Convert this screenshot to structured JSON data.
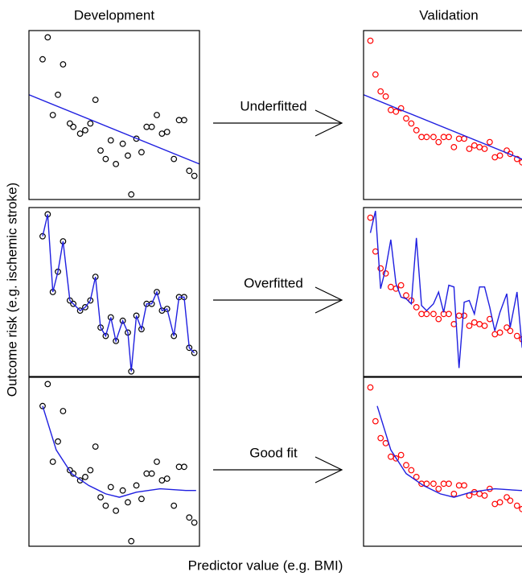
{
  "figure": {
    "xlabel": "Predictor value (e.g. BMI)",
    "ylabel": "Outcome risk (e.g. ischemic stroke)",
    "arrows": [
      "Underfitted",
      "Overfitted",
      "Good fit"
    ]
  },
  "chart_data": [
    {
      "type": "scatter",
      "title": "Development",
      "xlim": [
        0,
        100
      ],
      "ylim": [
        0,
        100
      ],
      "series": [
        {
          "color": "#000000",
          "x": [
            8,
            11,
            14,
            17,
            20,
            24,
            26,
            30,
            33,
            36,
            39,
            42,
            45,
            48,
            51,
            55,
            58,
            60,
            63,
            66,
            69,
            72,
            75,
            78,
            81,
            85,
            88,
            91,
            94,
            97
          ],
          "values": [
            83,
            96,
            50,
            62,
            80,
            45,
            43,
            39,
            41,
            45,
            59,
            29,
            24,
            35,
            21,
            33,
            26,
            3,
            36,
            28,
            43,
            43,
            50,
            39,
            40,
            24,
            47,
            47,
            17,
            14
          ]
        },
        {
          "color": "#1f1fe0",
          "x": [
            0,
            100
          ],
          "values": [
            62,
            21
          ]
        }
      ]
    },
    {
      "type": "scatter",
      "title": "Validation",
      "xlim": [
        0,
        100
      ],
      "ylim": [
        0,
        100
      ],
      "series": [
        {
          "color": "#ff0000",
          "x": [
            4,
            7,
            10,
            13,
            16,
            19,
            22,
            25,
            28,
            31,
            34,
            37,
            41,
            44,
            47,
            50,
            53,
            56,
            59,
            62,
            65,
            68,
            71,
            74,
            77,
            80,
            84,
            86,
            90,
            93
          ],
          "values": [
            94,
            74,
            64,
            61,
            53,
            52,
            54,
            48,
            45,
            41,
            37,
            37,
            37,
            34,
            37,
            37,
            31,
            36,
            36,
            30,
            32,
            31,
            30,
            34,
            25,
            26,
            29,
            27,
            24,
            22
          ]
        },
        {
          "color": "#1f1fe0",
          "x": [
            0,
            100
          ],
          "values": [
            62,
            21
          ]
        }
      ]
    },
    {
      "type": "scatter",
      "xlim": [
        0,
        100
      ],
      "ylim": [
        0,
        100
      ],
      "series": [
        {
          "color": "#000000",
          "x": [
            8,
            11,
            14,
            17,
            20,
            24,
            26,
            30,
            33,
            36,
            39,
            42,
            45,
            48,
            51,
            55,
            58,
            60,
            63,
            66,
            69,
            72,
            75,
            78,
            81,
            85,
            88,
            91,
            94,
            97
          ],
          "values": [
            83,
            96,
            50,
            62,
            80,
            45,
            43,
            39,
            41,
            45,
            59,
            29,
            24,
            35,
            21,
            33,
            26,
            3,
            36,
            28,
            43,
            43,
            50,
            39,
            40,
            24,
            47,
            47,
            17,
            14
          ]
        },
        {
          "color": "#1f1fe0",
          "x": [
            8,
            11,
            14,
            17,
            20,
            24,
            26,
            30,
            33,
            36,
            39,
            42,
            45,
            48,
            51,
            55,
            58,
            60,
            63,
            66,
            69,
            72,
            75,
            78,
            81,
            85,
            88,
            91,
            94,
            97
          ],
          "values": [
            83,
            96,
            50,
            62,
            80,
            45,
            43,
            39,
            41,
            45,
            59,
            29,
            24,
            35,
            21,
            33,
            26,
            3,
            36,
            28,
            43,
            43,
            50,
            39,
            40,
            24,
            47,
            47,
            17,
            14
          ]
        }
      ]
    },
    {
      "type": "scatter",
      "xlim": [
        0,
        100
      ],
      "ylim": [
        0,
        100
      ],
      "series": [
        {
          "color": "#ff0000",
          "x": [
            4,
            7,
            10,
            13,
            16,
            19,
            22,
            25,
            28,
            31,
            34,
            37,
            41,
            44,
            47,
            50,
            53,
            56,
            59,
            62,
            65,
            68,
            71,
            74,
            77,
            80,
            84,
            86,
            90,
            93
          ],
          "values": [
            94,
            74,
            64,
            61,
            53,
            52,
            54,
            48,
            45,
            41,
            37,
            37,
            37,
            34,
            37,
            37,
            31,
            36,
            36,
            30,
            32,
            31,
            30,
            34,
            25,
            26,
            29,
            27,
            24,
            22
          ]
        },
        {
          "color": "#1f1fe0",
          "x": [
            4,
            7,
            10,
            13,
            16,
            19,
            22,
            25,
            28,
            31,
            34,
            37,
            41,
            44,
            47,
            50,
            53,
            56,
            59,
            62,
            65,
            68,
            71,
            74,
            77,
            80,
            84,
            86,
            90,
            93
          ],
          "values": [
            85,
            98,
            52,
            64,
            81,
            55,
            47,
            46,
            43,
            82,
            42,
            39,
            43,
            50,
            38,
            54,
            53,
            5,
            44,
            45,
            37,
            53,
            53,
            41,
            27,
            38,
            49,
            29,
            50,
            17
          ]
        }
      ]
    },
    {
      "type": "scatter",
      "xlim": [
        0,
        100
      ],
      "ylim": [
        0,
        100
      ],
      "series": [
        {
          "color": "#000000",
          "x": [
            8,
            11,
            14,
            17,
            20,
            24,
            26,
            30,
            33,
            36,
            39,
            42,
            45,
            48,
            51,
            55,
            58,
            60,
            63,
            66,
            69,
            72,
            75,
            78,
            81,
            85,
            88,
            91,
            94,
            97
          ],
          "values": [
            83,
            96,
            50,
            62,
            80,
            45,
            43,
            39,
            41,
            45,
            59,
            29,
            24,
            35,
            21,
            33,
            26,
            3,
            36,
            28,
            43,
            43,
            50,
            39,
            40,
            24,
            47,
            47,
            17,
            14
          ]
        },
        {
          "color": "#1f1fe0",
          "x": [
            8,
            16,
            25,
            35,
            45,
            53,
            63,
            77,
            92,
            98
          ],
          "values": [
            83,
            57,
            43,
            36,
            31,
            29,
            32,
            34,
            33,
            33
          ]
        }
      ]
    },
    {
      "type": "scatter",
      "xlim": [
        0,
        100
      ],
      "ylim": [
        0,
        100
      ],
      "series": [
        {
          "color": "#ff0000",
          "x": [
            4,
            7,
            10,
            13,
            16,
            19,
            22,
            25,
            28,
            31,
            34,
            37,
            41,
            44,
            47,
            50,
            53,
            56,
            59,
            62,
            65,
            68,
            71,
            74,
            77,
            80,
            84,
            86,
            90,
            93
          ],
          "values": [
            94,
            74,
            64,
            61,
            53,
            52,
            54,
            48,
            45,
            41,
            37,
            37,
            37,
            34,
            37,
            37,
            31,
            36,
            36,
            30,
            32,
            31,
            30,
            34,
            25,
            26,
            29,
            27,
            24,
            22
          ]
        },
        {
          "color": "#1f1fe0",
          "x": [
            8,
            16,
            25,
            35,
            45,
            53,
            63,
            77,
            92,
            98
          ],
          "values": [
            83,
            57,
            43,
            36,
            31,
            29,
            32,
            34,
            33,
            33
          ]
        }
      ]
    }
  ]
}
